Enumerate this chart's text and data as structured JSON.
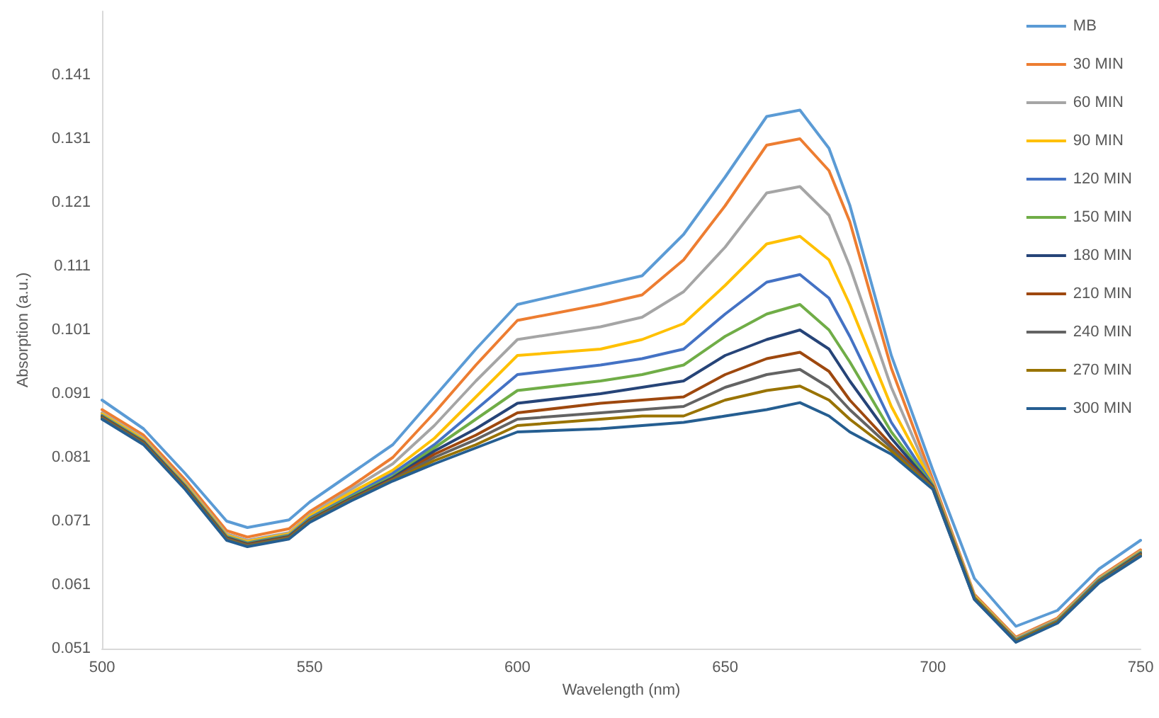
{
  "chart_data": {
    "type": "line",
    "xlabel": "Wavelength (nm)",
    "ylabel": "Absorption (a.u.)",
    "x": [
      500,
      510,
      520,
      530,
      535,
      545,
      550,
      560,
      570,
      580,
      590,
      600,
      620,
      630,
      640,
      650,
      660,
      668,
      675,
      680,
      690,
      700,
      710,
      720,
      730,
      740,
      750
    ],
    "xlim": [
      500,
      750
    ],
    "xticks": [
      500,
      550,
      600,
      650,
      700,
      750
    ],
    "ylim": [
      0.051,
      0.151
    ],
    "yticks": [
      0.051,
      0.061,
      0.071,
      0.081,
      0.091,
      0.101,
      0.111,
      0.121,
      0.131,
      0.141
    ],
    "grid": false,
    "legend": "top right",
    "marker": "none",
    "line_style": "solid",
    "series": [
      {
        "name": "MB",
        "color": "#5b9bd5",
        "values": [
          0.09,
          0.0855,
          0.0785,
          0.071,
          0.07,
          0.0712,
          0.074,
          0.0785,
          0.083,
          0.0905,
          0.098,
          0.105,
          0.108,
          0.1095,
          0.116,
          0.125,
          0.1345,
          0.1355,
          0.1295,
          0.1206,
          0.097,
          0.079,
          0.062,
          0.0545,
          0.057,
          0.0635,
          0.068
        ]
      },
      {
        "name": "30 MIN",
        "color": "#ed7d31",
        "values": [
          0.0885,
          0.0845,
          0.0775,
          0.0695,
          0.0685,
          0.0698,
          0.0725,
          0.0765,
          0.081,
          0.088,
          0.0955,
          0.1025,
          0.105,
          0.1065,
          0.112,
          0.1205,
          0.13,
          0.131,
          0.126,
          0.118,
          0.095,
          0.0775,
          0.0595,
          0.0528,
          0.0558,
          0.0622,
          0.0665
        ]
      },
      {
        "name": "60 MIN",
        "color": "#a5a5a5",
        "values": [
          0.088,
          0.084,
          0.077,
          0.069,
          0.068,
          0.0692,
          0.072,
          0.076,
          0.08,
          0.086,
          0.093,
          0.0995,
          0.1015,
          0.103,
          0.107,
          0.114,
          0.1225,
          0.1235,
          0.119,
          0.111,
          0.092,
          0.077,
          0.0593,
          0.0526,
          0.0556,
          0.062,
          0.0663
        ]
      },
      {
        "name": "90 MIN",
        "color": "#ffc000",
        "values": [
          0.0878,
          0.0838,
          0.0768,
          0.0688,
          0.0678,
          0.069,
          0.0718,
          0.0755,
          0.079,
          0.084,
          0.0905,
          0.097,
          0.098,
          0.0995,
          0.102,
          0.108,
          0.1145,
          0.1157,
          0.112,
          0.105,
          0.089,
          0.0768,
          0.0592,
          0.0525,
          0.0555,
          0.0619,
          0.0662
        ]
      },
      {
        "name": "120 MIN",
        "color": "#4472c4",
        "values": [
          0.0876,
          0.0836,
          0.0766,
          0.0686,
          0.0676,
          0.0688,
          0.0715,
          0.075,
          0.0785,
          0.083,
          0.0885,
          0.094,
          0.0955,
          0.0965,
          0.098,
          0.1035,
          0.1085,
          0.1097,
          0.106,
          0.1,
          0.0865,
          0.0766,
          0.059,
          0.0524,
          0.0554,
          0.0618,
          0.0661
        ]
      },
      {
        "name": "150 MIN",
        "color": "#70ad47",
        "values": [
          0.0875,
          0.0835,
          0.0765,
          0.0685,
          0.0675,
          0.0687,
          0.0713,
          0.0748,
          0.078,
          0.0825,
          0.087,
          0.0915,
          0.093,
          0.094,
          0.0955,
          0.1,
          0.1035,
          0.105,
          0.101,
          0.096,
          0.085,
          0.0765,
          0.059,
          0.0523,
          0.0553,
          0.0617,
          0.066
        ]
      },
      {
        "name": "180 MIN",
        "color": "#264478",
        "values": [
          0.0874,
          0.0834,
          0.0764,
          0.0684,
          0.0674,
          0.0686,
          0.0712,
          0.0746,
          0.0778,
          0.082,
          0.0855,
          0.0895,
          0.091,
          0.092,
          0.093,
          0.097,
          0.0995,
          0.101,
          0.098,
          0.093,
          0.084,
          0.0764,
          0.0589,
          0.0522,
          0.0552,
          0.0616,
          0.0659
        ]
      },
      {
        "name": "210 MIN",
        "color": "#9e480e",
        "values": [
          0.0873,
          0.0833,
          0.0763,
          0.0683,
          0.0673,
          0.0685,
          0.0711,
          0.0745,
          0.0776,
          0.0815,
          0.0845,
          0.088,
          0.0895,
          0.09,
          0.0905,
          0.094,
          0.0965,
          0.0975,
          0.0945,
          0.09,
          0.083,
          0.0763,
          0.0589,
          0.0522,
          0.0552,
          0.0615,
          0.0658
        ]
      },
      {
        "name": "240 MIN",
        "color": "#636363",
        "values": [
          0.0872,
          0.0832,
          0.0762,
          0.0682,
          0.0672,
          0.0684,
          0.071,
          0.0744,
          0.0775,
          0.081,
          0.0838,
          0.087,
          0.088,
          0.0885,
          0.089,
          0.092,
          0.094,
          0.0948,
          0.092,
          0.0885,
          0.0825,
          0.0762,
          0.0588,
          0.0521,
          0.0551,
          0.0615,
          0.0657
        ]
      },
      {
        "name": "270 MIN",
        "color": "#997300",
        "values": [
          0.0871,
          0.0831,
          0.0761,
          0.0681,
          0.0671,
          0.0683,
          0.0709,
          0.0743,
          0.0774,
          0.0805,
          0.083,
          0.086,
          0.087,
          0.0875,
          0.0875,
          0.09,
          0.0915,
          0.0922,
          0.09,
          0.087,
          0.082,
          0.0761,
          0.0588,
          0.0521,
          0.0551,
          0.0614,
          0.0656
        ]
      },
      {
        "name": "300 MIN",
        "color": "#255e91",
        "values": [
          0.087,
          0.083,
          0.076,
          0.068,
          0.067,
          0.0682,
          0.0708,
          0.0742,
          0.0773,
          0.08,
          0.0825,
          0.085,
          0.0855,
          0.086,
          0.0865,
          0.0875,
          0.0885,
          0.0896,
          0.0875,
          0.085,
          0.0815,
          0.076,
          0.0587,
          0.052,
          0.055,
          0.0613,
          0.0655
        ]
      }
    ]
  }
}
